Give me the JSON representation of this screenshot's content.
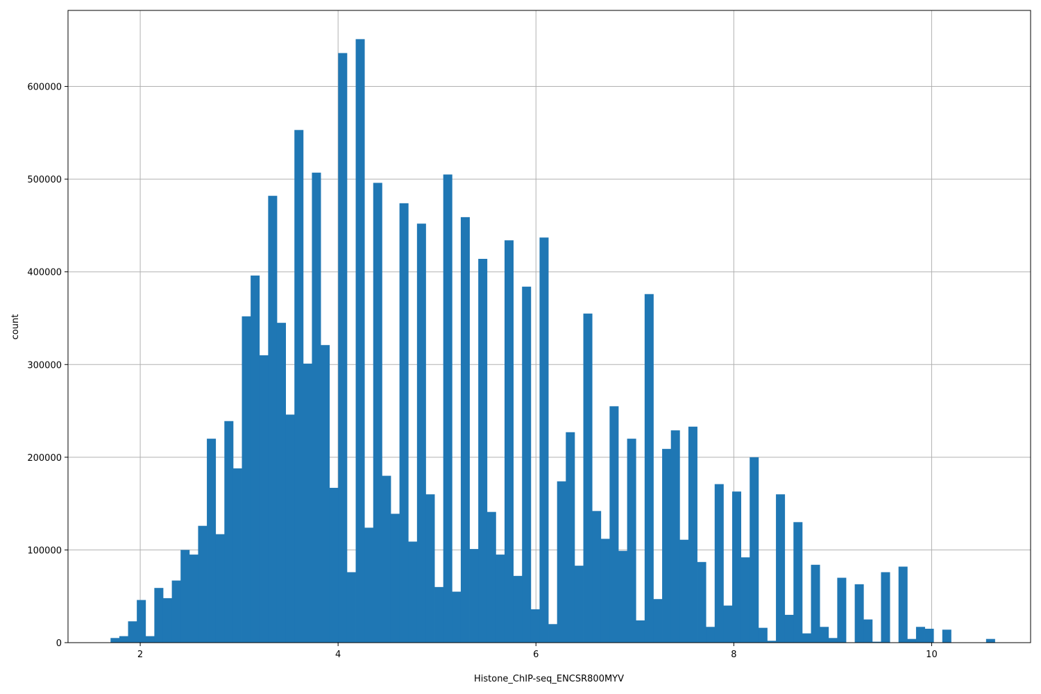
{
  "chart_data": {
    "type": "bar",
    "subtype": "histogram",
    "xlabel": "Histone_ChIP-seq_ENCSR800MYV",
    "ylabel": "count",
    "xlim": [
      1.27,
      11.0
    ],
    "ylim": [
      0,
      682000
    ],
    "xticks": [
      2,
      4,
      6,
      8,
      10
    ],
    "yticks": [
      0,
      100000,
      200000,
      300000,
      400000,
      500000,
      600000
    ],
    "grid": true,
    "color": "#1f77b4",
    "bin_start": 1.7,
    "bin_width": 0.0885,
    "values": [
      5000,
      7000,
      23000,
      46000,
      7000,
      59000,
      48000,
      67000,
      100000,
      95000,
      126000,
      220000,
      117000,
      239000,
      188000,
      352000,
      396000,
      310000,
      482000,
      345000,
      246000,
      553000,
      301000,
      507000,
      321000,
      167000,
      636000,
      76000,
      651000,
      124000,
      496000,
      180000,
      139000,
      474000,
      109000,
      452000,
      160000,
      60000,
      505000,
      55000,
      459000,
      101000,
      414000,
      141000,
      95000,
      434000,
      72000,
      384000,
      36000,
      437000,
      20000,
      174000,
      227000,
      83000,
      355000,
      142000,
      112000,
      255000,
      99000,
      220000,
      24000,
      376000,
      47000,
      209000,
      229000,
      111000,
      233000,
      87000,
      17000,
      171000,
      40000,
      163000,
      92000,
      200000,
      16000,
      2000,
      160000,
      30000,
      130000,
      10000,
      84000,
      17000,
      5000,
      70000,
      0,
      63000,
      25000,
      1000,
      76000,
      0,
      82000,
      4000,
      17000,
      15000,
      0,
      14000,
      0,
      0,
      0,
      0,
      4000
    ]
  }
}
